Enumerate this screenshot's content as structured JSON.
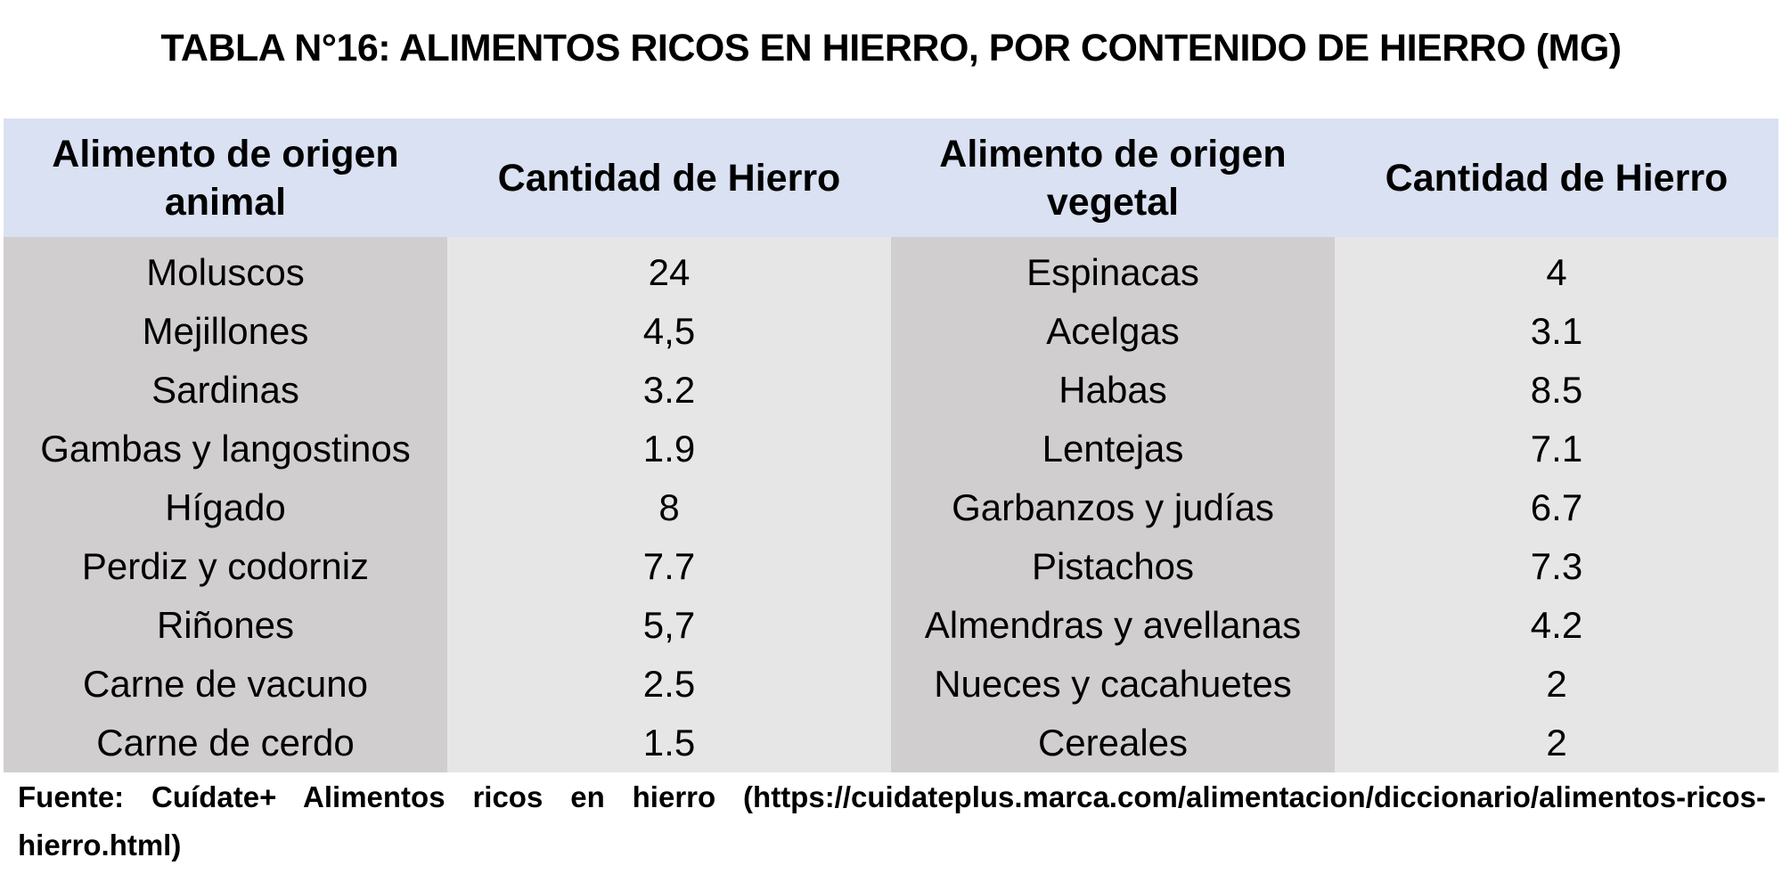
{
  "title": "TABLA N°16: ALIMENTOS RICOS EN HIERRO, POR CONTENIDO DE HIERRO (MG)",
  "table": {
    "headers": [
      "Alimento de origen animal",
      "Cantidad de Hierro",
      "Alimento de origen vegetal",
      "Cantidad de Hierro"
    ],
    "rows": [
      [
        "Moluscos",
        "24",
        "Espinacas",
        "4"
      ],
      [
        "Mejillones",
        "4,5",
        "Acelgas",
        "3.1"
      ],
      [
        "Sardinas",
        "3.2",
        "Habas",
        "8.5"
      ],
      [
        "Gambas y langostinos",
        "1.9",
        "Lentejas",
        "7.1"
      ],
      [
        "Hígado",
        "8",
        "Garbanzos y judías",
        "6.7"
      ],
      [
        "Perdiz y codorniz",
        "7.7",
        "Pistachos",
        "7.3"
      ],
      [
        "Riñones",
        "5,7",
        "Almendras y avellanas",
        "4.2"
      ],
      [
        "Carne de vacuno",
        "2.5",
        "Nueces y cacahuetes",
        "2"
      ],
      [
        "Carne de cerdo",
        "1.5",
        "Cereales",
        "2"
      ]
    ]
  },
  "source": "Fuente: Cuídate+ Alimentos ricos en hierro (https://cuidateplus.marca.com/alimentacion/diccionario/alimentos-ricos-hierro.html)",
  "colors": {
    "header_bg": "#d9e1f2",
    "name_column_bg": "#d0cece",
    "value_column_bg": "#e7e6e6"
  }
}
